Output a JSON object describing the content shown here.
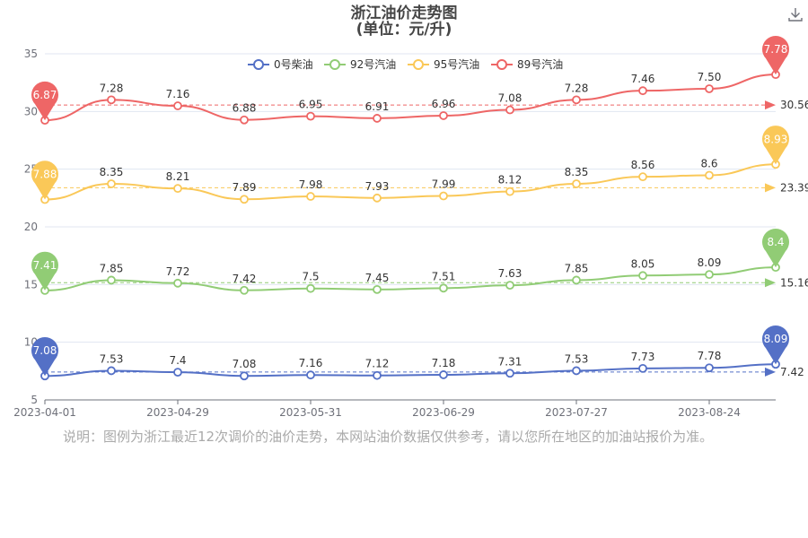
{
  "header": {
    "title_line1": "浙江油价走势图",
    "title_line2": "(单位：元/升)",
    "download_icon": "download-icon"
  },
  "note": "说明：图例为浙江最近12次调价的油价走势，本网站油价数据仅供参考，请以您所在地区的加油站报价为准。",
  "chart_data": {
    "type": "line",
    "x": [
      "2023-04-01",
      "2023-04-16",
      "2023-04-29",
      "2023-05-15",
      "2023-05-31",
      "2023-06-15",
      "2023-06-29",
      "2023-07-14",
      "2023-07-27",
      "2023-08-10",
      "2023-08-24",
      "2023-09-05"
    ],
    "x_tick_labels": [
      "2023-04-01",
      "2023-04-29",
      "2023-05-31",
      "2023-06-29",
      "2023-07-27",
      "2023-08-24"
    ],
    "y_ticks": [
      5,
      10,
      15,
      20,
      25,
      30,
      35
    ],
    "ylim": [
      5,
      35
    ],
    "legend_position": "top-center",
    "series": [
      {
        "name": "0号柴油",
        "color": "#5470c6",
        "values": [
          7.08,
          7.53,
          7.4,
          7.08,
          7.16,
          7.12,
          7.18,
          7.31,
          7.53,
          7.73,
          7.78,
          8.09
        ],
        "labels": [
          "7.08",
          "7.53",
          "7.4",
          "7.08",
          "7.16",
          "7.12",
          "7.18",
          "7.31",
          "7.53",
          "7.73",
          "7.78",
          "8.09"
        ],
        "average": 7.42,
        "average_label": "7.42",
        "min_label": "7.08",
        "max_label": "8.09"
      },
      {
        "name": "92号汽油",
        "color": "#91cc75",
        "values": [
          7.41,
          7.85,
          7.72,
          7.42,
          7.5,
          7.45,
          7.51,
          7.63,
          7.85,
          8.05,
          8.09,
          8.4
        ],
        "labels": [
          "7.41",
          "7.85",
          "7.72",
          "7.42",
          "7.5",
          "7.45",
          "7.51",
          "7.63",
          "7.85",
          "8.05",
          "8.09",
          "8.4"
        ],
        "average": 15.16,
        "average_label": "15.16",
        "min_label": "7.41",
        "max_label": "8.4"
      },
      {
        "name": "95号汽油",
        "color": "#fac858",
        "values": [
          7.88,
          8.35,
          8.21,
          7.89,
          7.98,
          7.93,
          7.99,
          8.12,
          8.35,
          8.56,
          8.6,
          8.93
        ],
        "labels": [
          "7.88",
          "8.35",
          "8.21",
          "7.89",
          "7.98",
          "7.93",
          "7.99",
          "8.12",
          "8.35",
          "8.56",
          "8.6",
          "8.93"
        ],
        "average": 23.39,
        "average_label": "23.39",
        "min_label": "7.88",
        "max_label": "8.93"
      },
      {
        "name": "89号汽油",
        "color": "#ee6666",
        "values": [
          6.87,
          7.28,
          7.16,
          6.88,
          6.95,
          6.91,
          6.96,
          7.08,
          7.28,
          7.46,
          7.5,
          7.78
        ],
        "labels": [
          "6.87",
          "7.28",
          "7.16",
          "6.88",
          "6.95",
          "6.91",
          "6.96",
          "7.08",
          "7.28",
          "7.46",
          "7.50",
          "7.78"
        ],
        "average": 30.56,
        "average_label": "30.56",
        "min_label": "6.87",
        "max_label": "7.78"
      }
    ]
  }
}
